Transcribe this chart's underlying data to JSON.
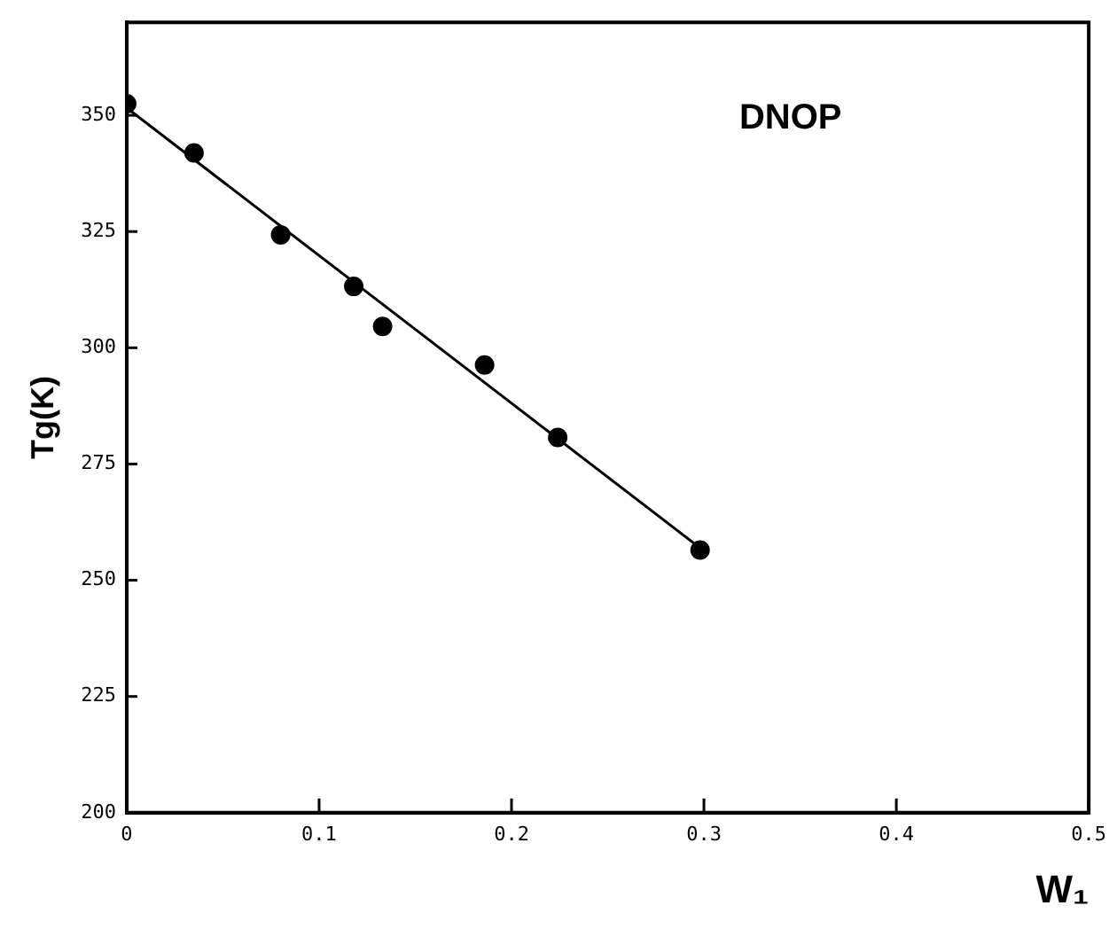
{
  "chart_data": {
    "type": "scatter",
    "xlabel": "W₁",
    "ylabel": "Tg(K)",
    "annotations": [
      "DNOP"
    ],
    "xlim": [
      0,
      0.5
    ],
    "xticks": [
      0,
      0.1,
      0.2,
      0.3,
      0.4,
      0.5
    ],
    "ylim": [
      200,
      370
    ],
    "yticks": [
      200,
      225,
      250,
      275,
      300,
      325,
      350
    ],
    "grid": false,
    "legend": false,
    "marker": "circle",
    "series": [
      {
        "type": "scatter",
        "color": "#000000",
        "x": [
          0,
          0.035,
          0.08,
          0.118,
          0.133,
          0.186,
          0.224,
          0.298
        ],
        "values": [
          352.5,
          341.9,
          324.3,
          313.2,
          304.6,
          296.3,
          280.7,
          256.5
        ]
      },
      {
        "type": "line",
        "color": "#000000",
        "marker": "none",
        "x": [
          0,
          0.3
        ],
        "values": [
          351.6,
          256.3
        ]
      }
    ]
  }
}
